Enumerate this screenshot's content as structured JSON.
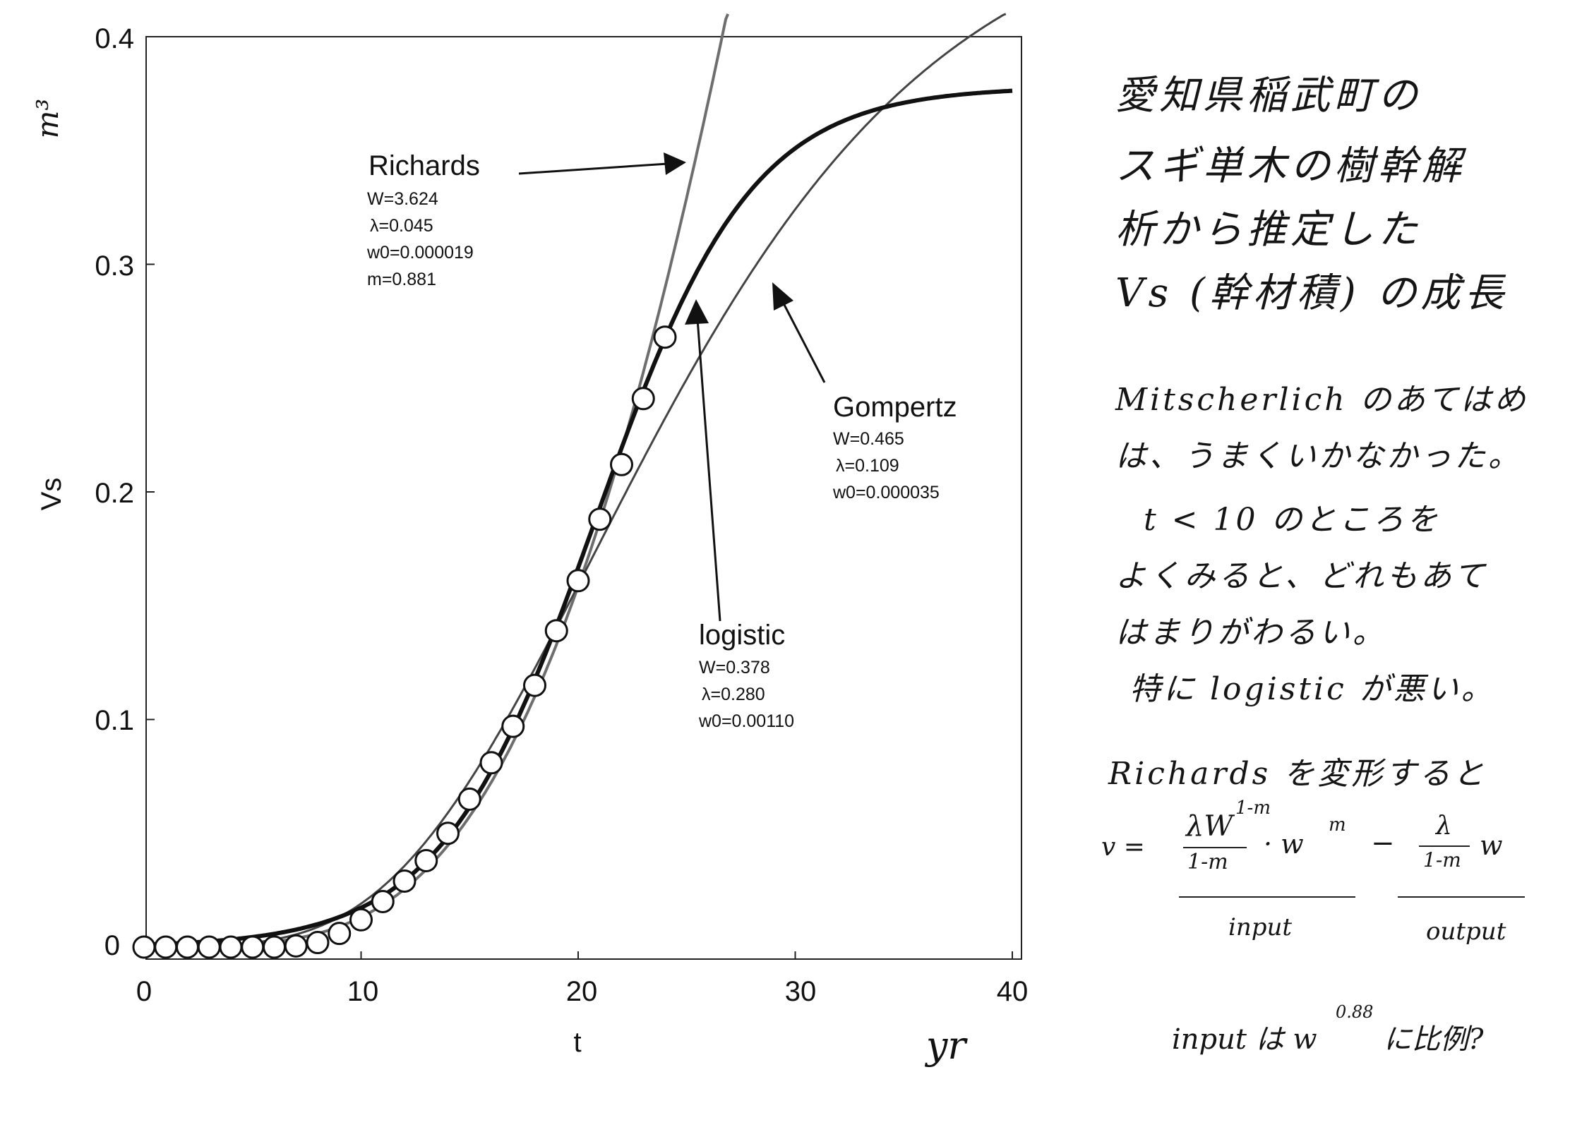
{
  "chart_data": {
    "type": "line",
    "xlabel": "t",
    "ylabel": "Vs",
    "x_unit": "yr",
    "y_unit": "m³",
    "xlim": [
      0,
      40
    ],
    "ylim": [
      0,
      0.4
    ],
    "x_ticks": [
      "0",
      "10",
      "20",
      "30",
      "40"
    ],
    "y_ticks": [
      "0",
      "0.1",
      "0.2",
      "0.3",
      "0.4"
    ],
    "grid": false,
    "observed": {
      "x": [
        0,
        1,
        2,
        3,
        4,
        5,
        6,
        7,
        8,
        9,
        10,
        11,
        12,
        13,
        14,
        15,
        16,
        17,
        18,
        19,
        20,
        21,
        22,
        23,
        24
      ],
      "y": [
        0,
        0,
        0,
        0,
        0,
        0,
        0,
        0.0005,
        0.002,
        0.006,
        0.012,
        0.02,
        0.029,
        0.038,
        0.05,
        0.065,
        0.081,
        0.097,
        0.115,
        0.139,
        0.161,
        0.188,
        0.212,
        0.241,
        0.268
      ]
    },
    "series": [
      {
        "name": "Richards",
        "model": "richards",
        "params": [
          "W=3.624",
          "λ=0.045",
          "w0=0.000019",
          "m=0.881"
        ],
        "W": 3.624,
        "lambda": 0.045,
        "w0": 1.9e-05,
        "m": 0.881,
        "color": "#6e6e6e"
      },
      {
        "name": "Gompertz",
        "model": "gompertz",
        "params": [
          "W=0.465",
          "λ=0.109",
          "w0=0.000035"
        ],
        "W": 0.465,
        "lambda": 0.109,
        "w0": 3.5e-05,
        "color": "#444444"
      },
      {
        "name": "logistic",
        "model": "logistic",
        "params": [
          "W=0.378",
          "λ=0.280",
          "w0=0.00110"
        ],
        "W": 0.378,
        "lambda": 0.28,
        "w0": 0.0011,
        "color": "#111111"
      }
    ]
  },
  "notes": {
    "title_lines": [
      "愛知県稲武町の",
      "スギ単木の樹幹解",
      "析から推定した",
      "Vs (幹材積) の成長"
    ],
    "comment_lines": [
      "Mitscherlich のあてはめ",
      "は、うまくいかなかった。",
      "t < 10 のところを",
      "よくみると、どれもあて",
      "はまりがわるい。",
      "特に logistic が悪い。"
    ],
    "richards_line": "Richards を変形すると",
    "eq_lhs": "v =",
    "eq_num1": "λW",
    "eq_exp1": "1-m",
    "eq_den1": "1-m",
    "eq_mid": "· w",
    "eq_exp2": "m",
    "eq_minus": "−",
    "eq_num2": "λ",
    "eq_den2": "1-m",
    "eq_tail": "w",
    "input_label": "input",
    "output_label": "output",
    "final_prefix": "input は w",
    "final_exp": "0.88",
    "final_suffix": "に比例?"
  }
}
